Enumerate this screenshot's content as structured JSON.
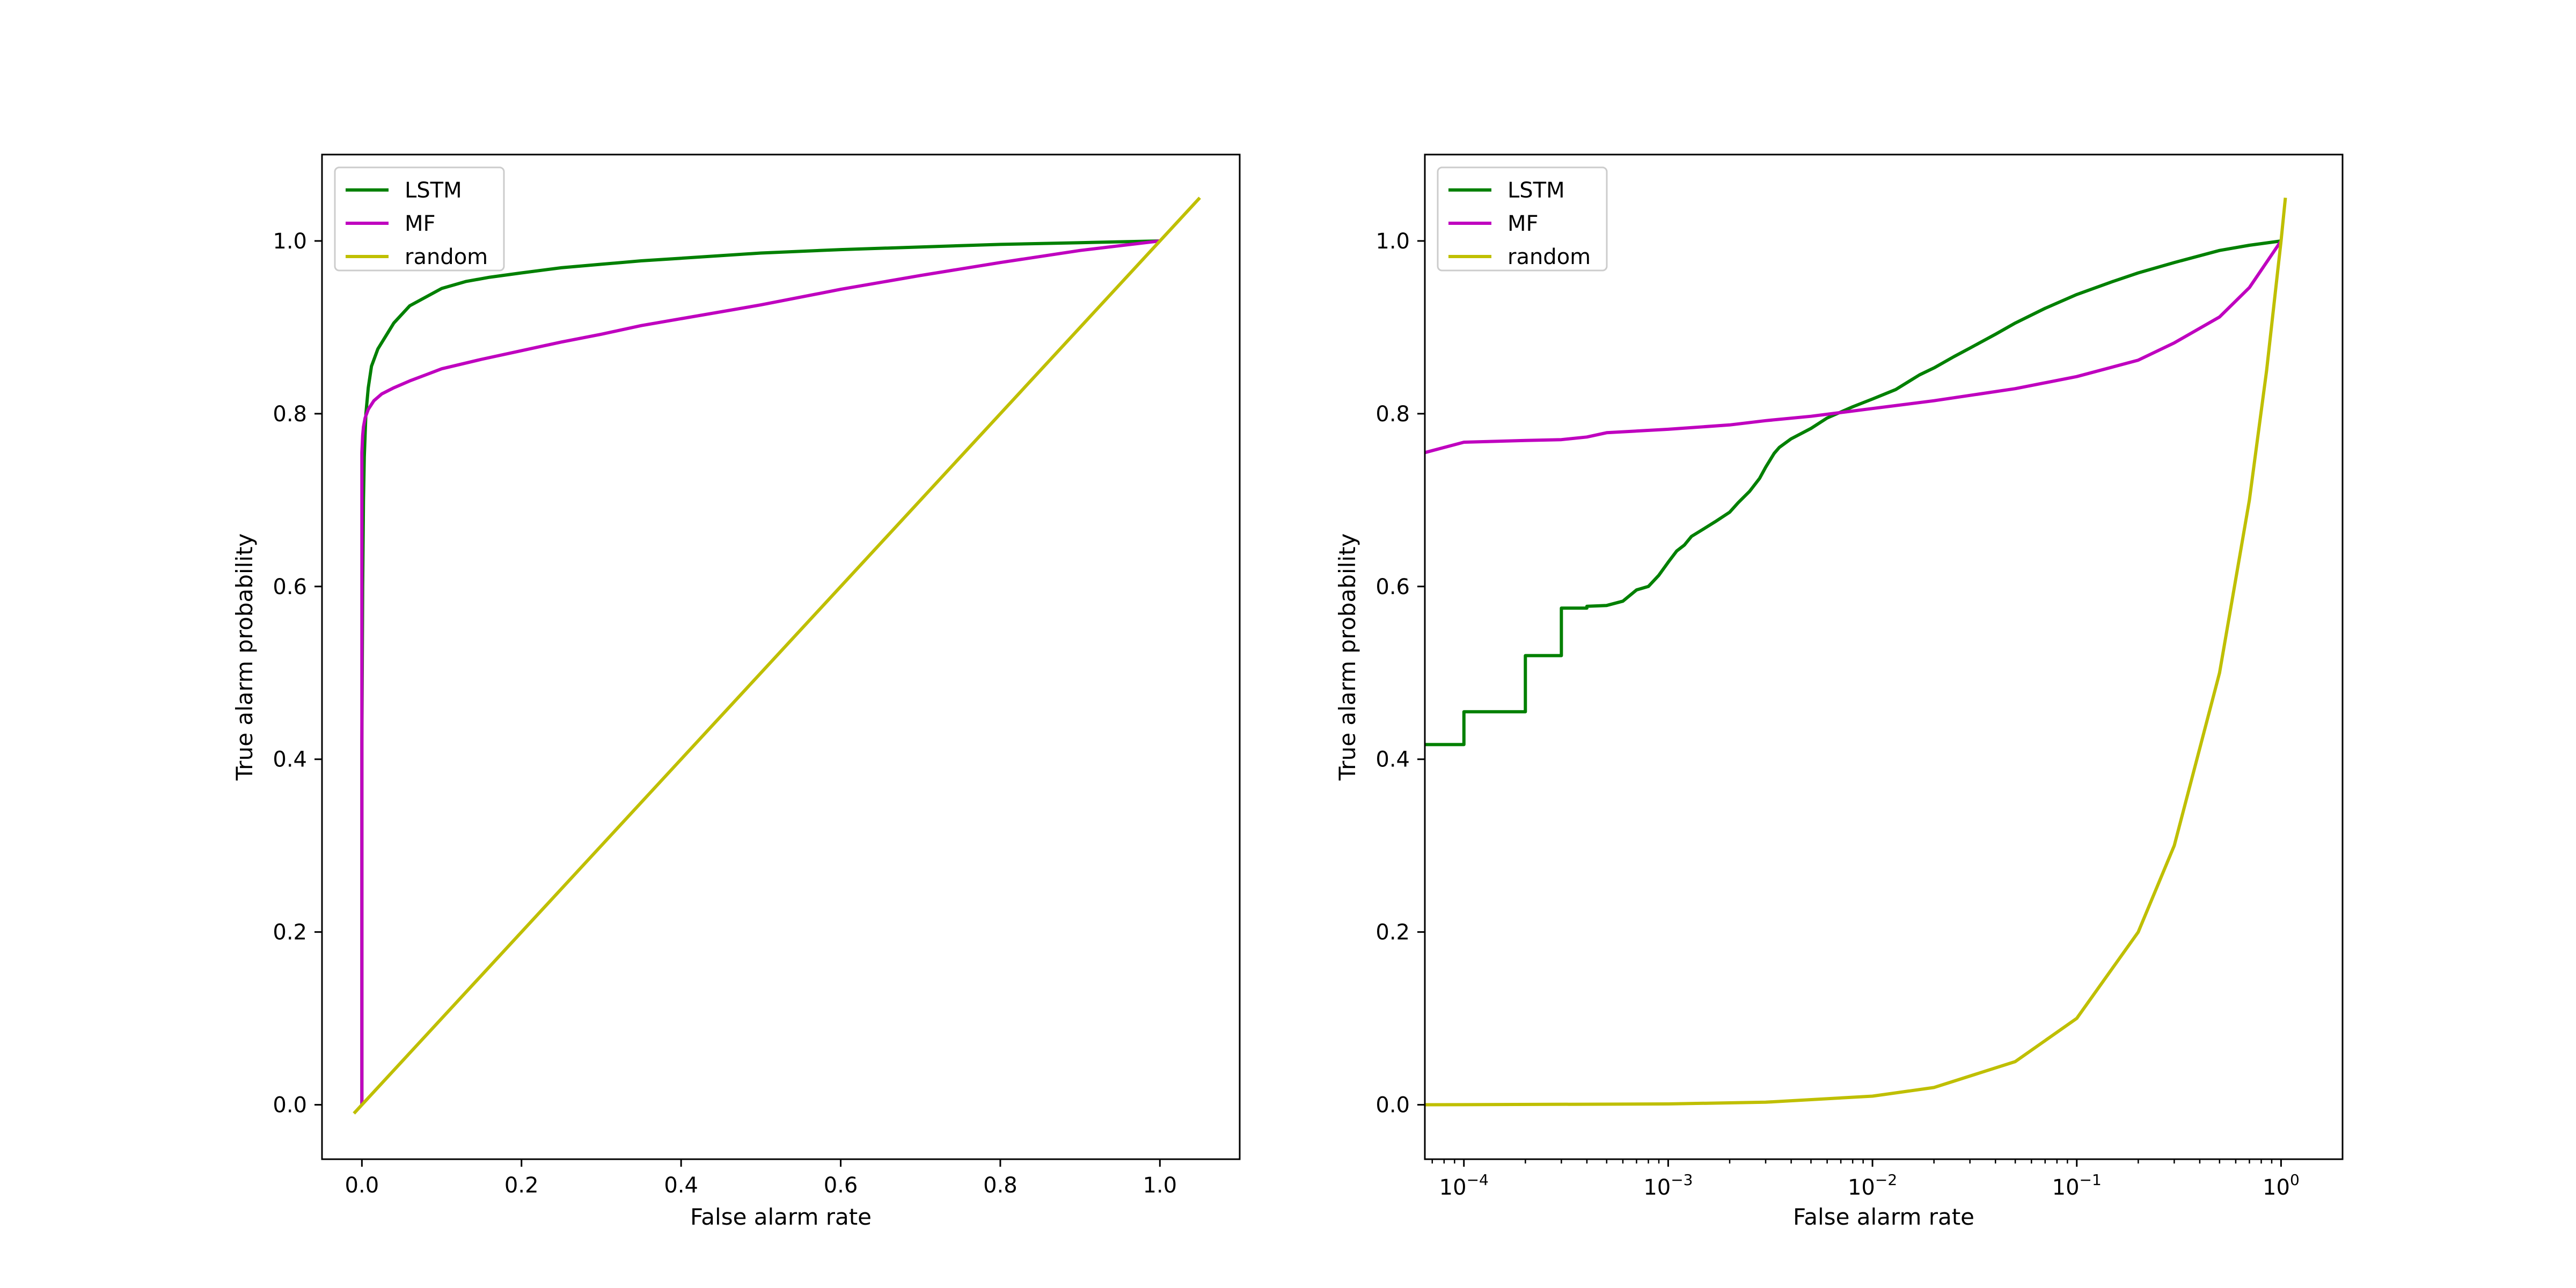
{
  "colors": {
    "LSTM": "#008000",
    "MF": "#bf00bf",
    "random": "#bfbf00",
    "frame": "#000000",
    "legend_border": "#cccccc"
  },
  "chart_data": [
    {
      "type": "line",
      "title": "",
      "xlabel": "False alarm rate",
      "ylabel": "True alarm probability",
      "xscale": "linear",
      "xlim": [
        -0.05,
        1.1
      ],
      "ylim": [
        -0.063,
        1.1
      ],
      "xticks": [
        0.0,
        0.2,
        0.4,
        0.6,
        0.8,
        1.0
      ],
      "xtick_labels": [
        "0.0",
        "0.2",
        "0.4",
        "0.6",
        "0.8",
        "1.0"
      ],
      "yticks": [
        0.0,
        0.2,
        0.4,
        0.6,
        0.8,
        1.0
      ],
      "ytick_labels": [
        "0.0",
        "0.2",
        "0.4",
        "0.6",
        "0.8",
        "1.0"
      ],
      "grid": false,
      "legend": "upper-left",
      "legend_entries": [
        "LSTM",
        "MF",
        "random"
      ],
      "series": [
        {
          "name": "LSTM",
          "x": [
            0.0,
            0.0,
            0.001,
            0.002,
            0.003,
            0.005,
            0.008,
            0.012,
            0.02,
            0.03,
            0.04,
            0.05,
            0.06,
            0.08,
            0.1,
            0.13,
            0.16,
            0.2,
            0.25,
            0.3,
            0.35,
            0.4,
            0.5,
            0.6,
            0.7,
            0.8,
            0.9,
            1.0
          ],
          "y": [
            0.0,
            0.42,
            0.6,
            0.7,
            0.75,
            0.8,
            0.83,
            0.855,
            0.875,
            0.89,
            0.905,
            0.915,
            0.925,
            0.935,
            0.945,
            0.953,
            0.958,
            0.963,
            0.969,
            0.973,
            0.977,
            0.98,
            0.986,
            0.99,
            0.993,
            0.996,
            0.998,
            1.0
          ]
        },
        {
          "name": "MF",
          "x": [
            0.0,
            0.0,
            0.001,
            0.002,
            0.004,
            0.008,
            0.015,
            0.025,
            0.04,
            0.06,
            0.08,
            0.1,
            0.15,
            0.2,
            0.25,
            0.3,
            0.35,
            0.4,
            0.5,
            0.6,
            0.7,
            0.8,
            0.9,
            1.0
          ],
          "y": [
            0.0,
            0.755,
            0.775,
            0.785,
            0.795,
            0.805,
            0.815,
            0.823,
            0.83,
            0.838,
            0.845,
            0.852,
            0.863,
            0.873,
            0.883,
            0.892,
            0.902,
            0.91,
            0.926,
            0.944,
            0.96,
            0.975,
            0.989,
            1.0
          ]
        },
        {
          "name": "random",
          "x": [
            -0.01,
            1.05
          ],
          "y": [
            -0.01,
            1.05
          ]
        }
      ]
    },
    {
      "type": "line",
      "title": "",
      "xlabel": "False alarm rate",
      "ylabel": "True alarm probability",
      "xscale": "log",
      "xlim": [
        6.44e-05,
        2.0
      ],
      "ylim": [
        -0.063,
        1.1
      ],
      "xticks": [
        0.0001,
        0.001,
        0.01,
        0.1,
        1
      ],
      "xtick_labels": [
        [
          "10",
          "−4"
        ],
        [
          "10",
          "−3"
        ],
        [
          "10",
          "−2"
        ],
        [
          "10",
          "−1"
        ],
        [
          "10",
          "0"
        ]
      ],
      "yticks": [
        0.0,
        0.2,
        0.4,
        0.6,
        0.8,
        1.0
      ],
      "ytick_labels": [
        "0.0",
        "0.2",
        "0.4",
        "0.6",
        "0.8",
        "1.0"
      ],
      "grid": false,
      "legend": "upper-left",
      "legend_entries": [
        "LSTM",
        "MF",
        "random"
      ],
      "series": [
        {
          "name": "LSTM",
          "x": [
            6.44e-05,
            0.0001,
            0.0001,
            0.0002,
            0.0002,
            0.0003,
            0.0003,
            0.0004,
            0.0004,
            0.0005,
            0.0006,
            0.0007,
            0.0008,
            0.0009,
            0.001,
            0.0011,
            0.0012,
            0.0013,
            0.0015,
            0.0017,
            0.002,
            0.0022,
            0.0025,
            0.0028,
            0.003,
            0.0033,
            0.0035,
            0.004,
            0.005,
            0.006,
            0.008,
            0.01,
            0.013,
            0.017,
            0.02,
            0.025,
            0.03,
            0.04,
            0.05,
            0.07,
            0.1,
            0.15,
            0.2,
            0.3,
            0.5,
            0.7,
            1.0
          ],
          "y": [
            0.417,
            0.417,
            0.455,
            0.455,
            0.52,
            0.52,
            0.575,
            0.575,
            0.577,
            0.578,
            0.583,
            0.596,
            0.6,
            0.613,
            0.628,
            0.641,
            0.648,
            0.658,
            0.667,
            0.675,
            0.686,
            0.697,
            0.71,
            0.725,
            0.738,
            0.754,
            0.761,
            0.771,
            0.783,
            0.795,
            0.808,
            0.817,
            0.828,
            0.845,
            0.853,
            0.866,
            0.876,
            0.892,
            0.905,
            0.922,
            0.938,
            0.953,
            0.963,
            0.975,
            0.989,
            0.995,
            1.0
          ]
        },
        {
          "name": "MF",
          "x": [
            6.44e-05,
            0.0001,
            0.0002,
            0.0003,
            0.0004,
            0.0005,
            0.001,
            0.002,
            0.003,
            0.005,
            0.01,
            0.02,
            0.05,
            0.1,
            0.2,
            0.3,
            0.5,
            0.7,
            1.0
          ],
          "y": [
            0.755,
            0.767,
            0.769,
            0.77,
            0.773,
            0.778,
            0.782,
            0.787,
            0.792,
            0.797,
            0.806,
            0.815,
            0.829,
            0.843,
            0.862,
            0.882,
            0.912,
            0.946,
            1.0
          ]
        },
        {
          "name": "random",
          "x": [
            6.44e-05,
            0.0001,
            0.001,
            0.003,
            0.01,
            0.02,
            0.05,
            0.1,
            0.2,
            0.3,
            0.5,
            0.7,
            0.85,
            1.0,
            1.05
          ],
          "y": [
            6.44e-05,
            0.0001,
            0.001,
            0.003,
            0.01,
            0.02,
            0.05,
            0.1,
            0.2,
            0.3,
            0.5,
            0.7,
            0.85,
            1.0,
            1.05
          ]
        }
      ]
    }
  ]
}
